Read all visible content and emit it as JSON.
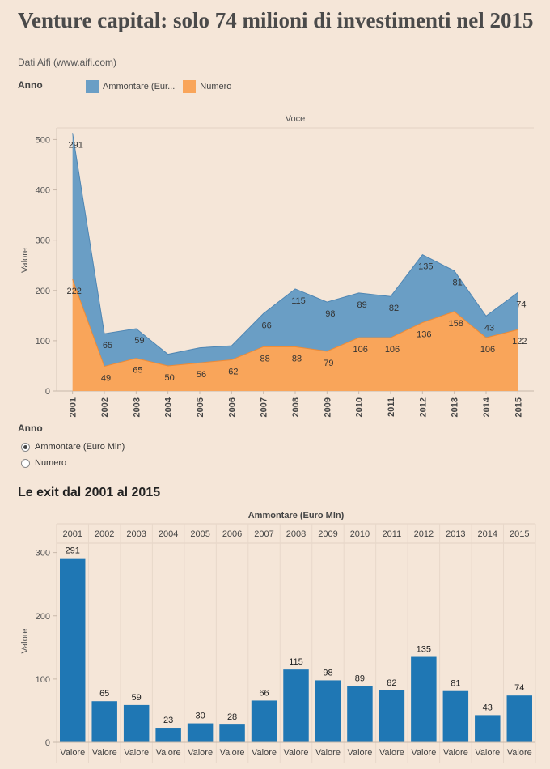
{
  "header": {
    "title": "Venture capital: solo 74 milioni di investimenti nel 2015",
    "source": "Dati Aifi (www.aifi.com)"
  },
  "legend": {
    "title": "Anno",
    "items": [
      {
        "label": "Ammontare (Eur...",
        "color": "#6a9ec5"
      },
      {
        "label": "Numero",
        "color": "#f9a55a"
      }
    ]
  },
  "filter": {
    "title": "Anno",
    "options": [
      {
        "label": "Ammontare (Euro Mln)",
        "checked": true
      },
      {
        "label": "Numero",
        "checked": false
      }
    ]
  },
  "section2": {
    "title": "Le exit dal 2001 al 2015"
  },
  "chart_data": [
    {
      "type": "area",
      "stacked": true,
      "header": "Voce",
      "ylabel": "Valore",
      "ylim": [
        0,
        520
      ],
      "yticks": [
        0,
        100,
        200,
        300,
        400,
        500
      ],
      "x": [
        "2001",
        "2002",
        "2003",
        "2004",
        "2005",
        "2006",
        "2007",
        "2008",
        "2009",
        "2010",
        "2011",
        "2012",
        "2013",
        "2014",
        "2015"
      ],
      "series": [
        {
          "name": "Numero",
          "color": "#f9a55a",
          "values": [
            222,
            49,
            65,
            50,
            56,
            62,
            88,
            88,
            79,
            106,
            106,
            136,
            158,
            106,
            122
          ]
        },
        {
          "name": "Ammontare (Eur...",
          "color": "#6a9ec5",
          "values": [
            291,
            65,
            59,
            23,
            30,
            28,
            66,
            115,
            98,
            89,
            82,
            135,
            81,
            43,
            74
          ]
        }
      ],
      "top_labels": [
        "291",
        "65",
        "59",
        "",
        "",
        "",
        "66",
        "115",
        "98",
        "89",
        "82",
        "135",
        "81",
        "43",
        "74"
      ]
    },
    {
      "type": "bar",
      "header": "Ammontare (Euro Mln)",
      "ylabel": "Valore",
      "ylim": [
        0,
        320
      ],
      "yticks": [
        0,
        100,
        200,
        300
      ],
      "color": "#1f77b4",
      "categories": [
        "2001",
        "2002",
        "2003",
        "2004",
        "2005",
        "2006",
        "2007",
        "2008",
        "2009",
        "2010",
        "2011",
        "2012",
        "2013",
        "2014",
        "2015"
      ],
      "values": [
        291,
        65,
        59,
        23,
        30,
        28,
        66,
        115,
        98,
        89,
        82,
        135,
        81,
        43,
        74
      ],
      "xlabel_each": "Valore"
    }
  ]
}
